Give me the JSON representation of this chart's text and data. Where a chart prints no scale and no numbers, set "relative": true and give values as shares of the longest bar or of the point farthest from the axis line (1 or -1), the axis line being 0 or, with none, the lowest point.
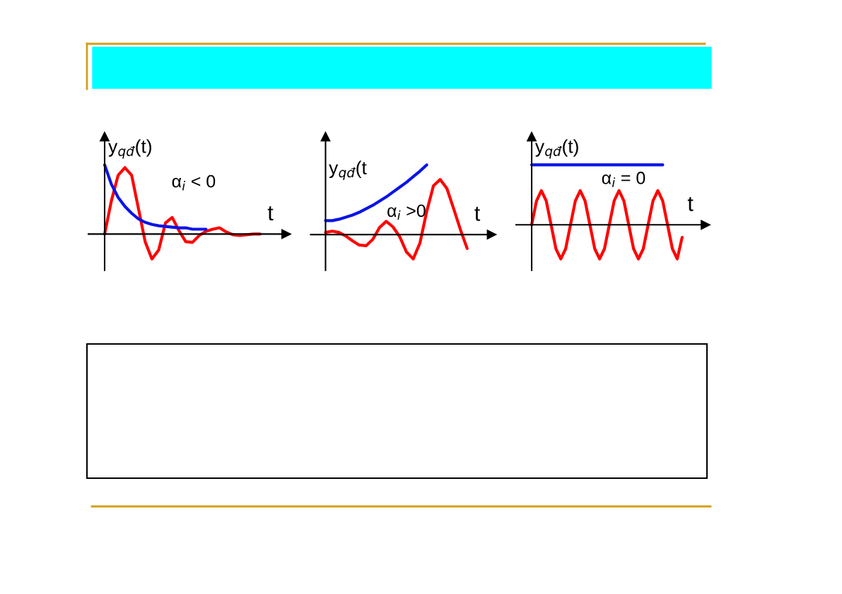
{
  "chart_data": [
    {
      "type": "line",
      "relative": true,
      "ylabel": "y$_{qđ}$(t)",
      "xlabel": "t",
      "annotations": [
        "α$_{i}$ < 0"
      ],
      "categories": [
        null,
        null,
        null,
        null,
        null,
        null,
        null,
        null,
        null,
        null,
        null,
        null,
        null,
        null,
        null,
        null,
        null,
        null,
        null,
        null,
        null,
        null,
        null,
        null
      ],
      "series": [
        {
          "color": "#ff0000",
          "values": [
            0,
            0.48,
            0.85,
            0.96,
            0.85,
            0.37,
            -0.11,
            -0.36,
            -0.23,
            0.16,
            0.24,
            0.05,
            -0.11,
            -0.12,
            -0.02,
            0.04,
            0.07,
            0.09,
            0.03,
            -0.01,
            -0.02,
            -0.01,
            0,
            0
          ]
        },
        {
          "color": "#0a14e6",
          "values": [
            1,
            0.72,
            0.53,
            0.4,
            0.3,
            0.22,
            0.17,
            0.14,
            0.12,
            0.11,
            0.1,
            0.09,
            0.09,
            0.07,
            0.07,
            0.07,
            null,
            null,
            null,
            null,
            null,
            null,
            null,
            null
          ]
        }
      ]
    },
    {
      "type": "line",
      "relative": true,
      "ylabel": "y$_{qđ}$(t",
      "xlabel": "t",
      "annotations": [
        "α$_{i}$ >0"
      ],
      "categories": [
        null,
        null,
        null,
        null,
        null,
        null,
        null,
        null,
        null,
        null,
        null,
        null,
        null,
        null,
        null,
        null,
        null,
        null,
        null,
        null,
        null,
        null
      ],
      "series": [
        {
          "color": "#ff0000",
          "values": [
            0.03,
            0.05,
            0.03,
            -0.02,
            -0.09,
            -0.15,
            -0.16,
            -0.07,
            0.1,
            0.19,
            0.11,
            -0.03,
            -0.25,
            -0.35,
            -0.12,
            0.33,
            0.7,
            0.79,
            0.66,
            0.37,
            0.07,
            -0.2
          ]
        },
        {
          "color": "#0a14e6",
          "values": [
            0.2,
            0.2,
            0.22,
            0.25,
            0.28,
            0.32,
            0.37,
            0.42,
            0.48,
            0.54,
            0.61,
            0.68,
            0.75,
            0.83,
            0.91,
            1.0,
            null,
            null,
            null,
            null,
            null,
            null
          ]
        }
      ]
    },
    {
      "type": "line",
      "relative": true,
      "ylabel": "y$_{qđ}$(t)",
      "xlabel": "t",
      "annotations": [
        "α$_{i}$ = 0"
      ],
      "categories": [
        null,
        null,
        null,
        null,
        null,
        null,
        null,
        null,
        null,
        null,
        null,
        null,
        null,
        null,
        null,
        null,
        null,
        null,
        null,
        null,
        null,
        null,
        null,
        null,
        null,
        null,
        null,
        null,
        null,
        null,
        null,
        null
      ],
      "series": [
        {
          "color": "#ff0000",
          "values": [
            0,
            0.4,
            0.57,
            0.4,
            0,
            -0.4,
            -0.57,
            -0.4,
            0,
            0.4,
            0.57,
            0.4,
            0,
            -0.4,
            -0.57,
            -0.4,
            0,
            0.4,
            0.57,
            0.4,
            0,
            -0.4,
            -0.57,
            -0.4,
            0,
            0.4,
            0.57,
            0.4,
            0,
            -0.4,
            -0.57,
            -0.21
          ]
        },
        {
          "color": "#0a14e6",
          "values": [
            1,
            1,
            1,
            1,
            1,
            1,
            1,
            1,
            1,
            1,
            1,
            1,
            1,
            1,
            1,
            1,
            1,
            1,
            1,
            1,
            1,
            1,
            1,
            1,
            1,
            1,
            1,
            1,
            null,
            null,
            null,
            null
          ]
        }
      ]
    }
  ]
}
